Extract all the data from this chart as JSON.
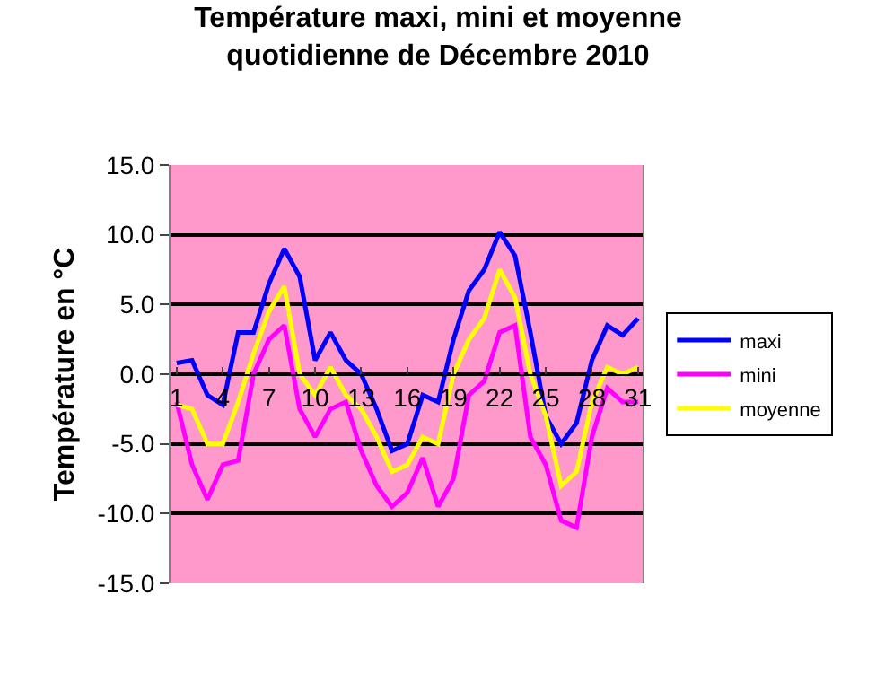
{
  "chart_data": {
    "type": "line",
    "title": "Température maxi, mini et moyenne\nquotidienne de Décembre 2010",
    "ylabel": "Température en °C",
    "x": [
      1,
      2,
      3,
      4,
      5,
      6,
      7,
      8,
      9,
      10,
      11,
      12,
      13,
      14,
      15,
      16,
      17,
      18,
      19,
      20,
      21,
      22,
      23,
      24,
      25,
      26,
      27,
      28,
      29,
      30,
      31
    ],
    "xlim": [
      0.6,
      31.3
    ],
    "xticks": [
      1,
      4,
      7,
      10,
      13,
      16,
      19,
      22,
      25,
      28,
      31
    ],
    "ylim": [
      -15,
      15
    ],
    "yticks": [
      {
        "value": -15,
        "label": "-15.0"
      },
      {
        "value": -10,
        "label": "-10.0"
      },
      {
        "value": -5,
        "label": "-5.0"
      },
      {
        "value": 0,
        "label": "0.0"
      },
      {
        "value": 5,
        "label": "5.0"
      },
      {
        "value": 10,
        "label": "10.0"
      },
      {
        "value": 15,
        "label": "15.0"
      }
    ],
    "grid": "y",
    "legend": "right",
    "marker": "none",
    "line_style": "solid",
    "series": [
      {
        "name": "maxi",
        "color": "#0000ff",
        "values": [
          0.8,
          1.0,
          -1.5,
          -2.2,
          3.0,
          3.0,
          6.5,
          9.0,
          7.0,
          1.0,
          3.0,
          1.0,
          0,
          -2.5,
          -5.5,
          -5.0,
          -1.5,
          -2.0,
          2.5,
          6.0,
          7.5,
          10.2,
          8.5,
          3.0,
          -3.0,
          -5.0,
          -3.5,
          1.0,
          3.5,
          2.8,
          4.0
        ]
      },
      {
        "name": "mini",
        "color": "#ff00ff",
        "values": [
          -2.0,
          -6.5,
          -9.0,
          -6.5,
          -6.2,
          0,
          2.5,
          3.5,
          -2.5,
          -4.5,
          -2.5,
          -2.0,
          -5.5,
          -8.0,
          -9.5,
          -8.5,
          -6.0,
          -9.5,
          -7.5,
          -1.5,
          -0.5,
          3.0,
          3.5,
          -4.5,
          -6.5,
          -10.5,
          -11.0,
          -4.5,
          -1.0,
          -2.0,
          -2.0
        ]
      },
      {
        "name": "moyenne",
        "color": "#ffff00",
        "values": [
          -2.2,
          -2.5,
          -5.0,
          -5.0,
          -2.0,
          1.5,
          4.5,
          6.3,
          0,
          -1.5,
          0.5,
          -1.5,
          -2.5,
          -4.5,
          -7.0,
          -6.5,
          -4.5,
          -5.0,
          0,
          2.5,
          4.0,
          7.5,
          5.5,
          0,
          -3.0,
          -8.0,
          -7.0,
          -2.0,
          0.5,
          0,
          0.5
        ]
      }
    ]
  }
}
